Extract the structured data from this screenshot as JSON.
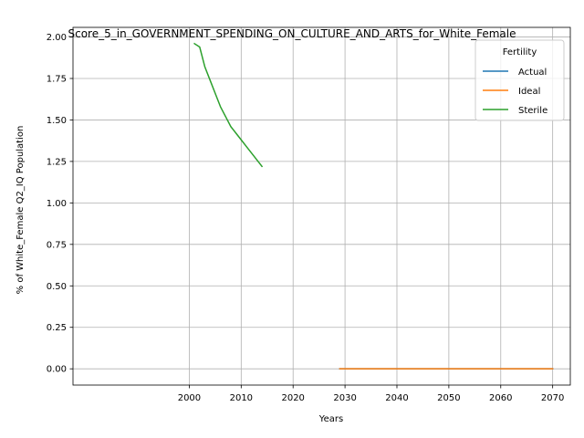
{
  "chart_data": {
    "type": "line",
    "title": "Score_5_in_GOVERNMENT_SPENDING_ON_CULTURE_AND_ARTS_for_White_Female",
    "xlabel": "Years",
    "ylabel": "% of White_Female Q2_IQ Population",
    "xlim": [
      1977.6,
      2073.4
    ],
    "ylim": [
      -0.098,
      2.058
    ],
    "x_ticks": [
      2000,
      2010,
      2020,
      2030,
      2040,
      2050,
      2060,
      2070
    ],
    "x_tick_labels": [
      "2000",
      "2010",
      "2020",
      "2030",
      "2040",
      "2050",
      "2060",
      "2070"
    ],
    "y_ticks": [
      0,
      0.25,
      0.5,
      0.75,
      1.0,
      1.25,
      1.5,
      1.75,
      2.0
    ],
    "y_tick_labels": [
      "0.00",
      "0.25",
      "0.50",
      "0.75",
      "1.00",
      "1.25",
      "1.50",
      "1.75",
      "2.00"
    ],
    "grid": true,
    "legend": {
      "title": "Fertility",
      "placement": "top-right"
    },
    "series": [
      {
        "name": "Actual",
        "color": "#1f77b4",
        "x": [
          2029,
          2070
        ],
        "y": [
          0.0,
          0.0
        ]
      },
      {
        "name": "Ideal",
        "color": "#ff7f0e",
        "x": [
          2029,
          2035,
          2040,
          2045,
          2050,
          2055,
          2060,
          2065,
          2070
        ],
        "y": [
          0.0,
          0.0,
          0.0,
          0.0,
          0.0,
          0.0,
          0.0,
          0.0,
          0.0
        ]
      },
      {
        "name": "Sterile",
        "color": "#2ca02c",
        "x": [
          2001,
          2002,
          2003,
          2004,
          2005,
          2006,
          2007,
          2008,
          2009,
          2010,
          2011,
          2012,
          2013,
          2014
        ],
        "y": [
          1.96,
          1.94,
          1.82,
          1.74,
          1.66,
          1.58,
          1.52,
          1.46,
          1.42,
          1.38,
          1.34,
          1.3,
          1.26,
          1.22
        ]
      }
    ]
  }
}
